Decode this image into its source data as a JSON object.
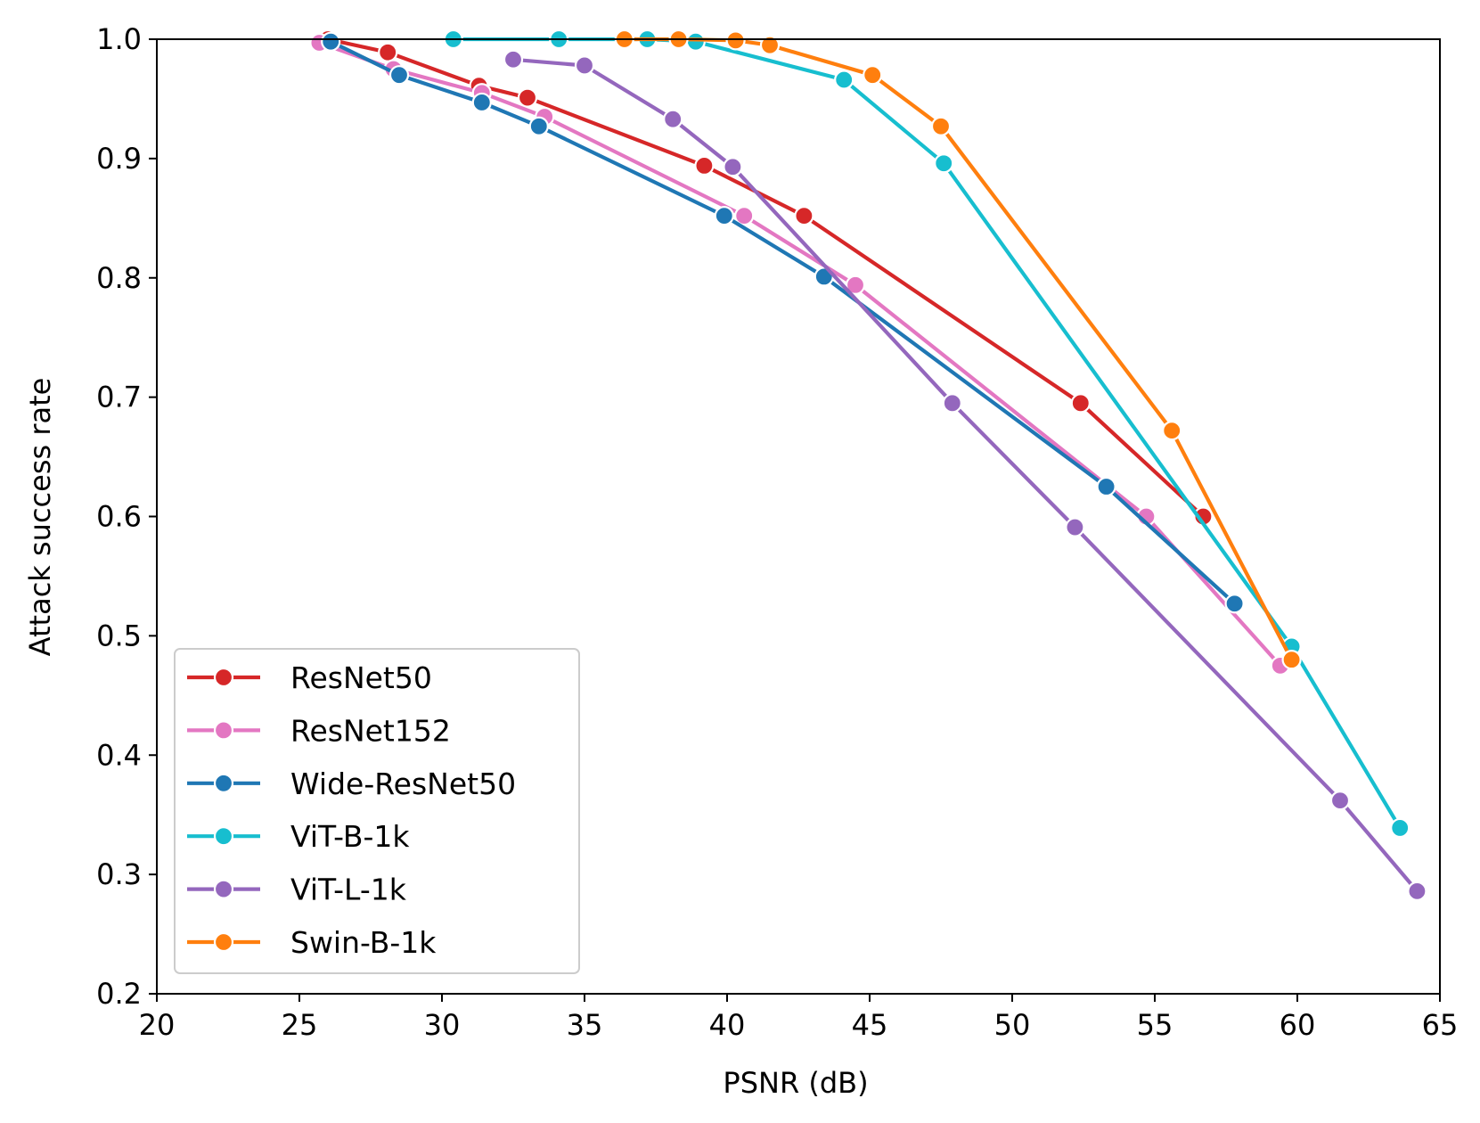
{
  "chart_data": {
    "type": "line",
    "title": "",
    "xlabel": "PSNR (dB)",
    "ylabel": "Attack success rate",
    "xlim": [
      20,
      65
    ],
    "ylim": [
      0.2,
      1.0
    ],
    "xticks": [
      20,
      25,
      30,
      35,
      40,
      45,
      50,
      55,
      60,
      65
    ],
    "yticks": [
      0.2,
      0.3,
      0.4,
      0.5,
      0.6,
      0.7,
      0.8,
      0.9,
      1.0
    ],
    "xtick_labels": [
      "20",
      "25",
      "30",
      "35",
      "40",
      "45",
      "50",
      "55",
      "60",
      "65"
    ],
    "ytick_labels": [
      "0.2",
      "0.3",
      "0.4",
      "0.5",
      "0.6",
      "0.7",
      "0.8",
      "0.9",
      "1.0"
    ],
    "grid": false,
    "legend_position": "lower-left",
    "series": [
      {
        "name": "ResNet50",
        "color": "#d62728",
        "x": [
          26.0,
          28.1,
          31.3,
          33.0,
          39.2,
          42.7,
          52.4,
          56.7
        ],
        "y": [
          1.0,
          0.989,
          0.961,
          0.951,
          0.894,
          0.852,
          0.695,
          0.6
        ]
      },
      {
        "name": "ResNet152",
        "color": "#e377c2",
        "x": [
          25.7,
          28.3,
          31.4,
          33.6,
          40.6,
          44.5,
          54.7,
          59.4
        ],
        "y": [
          0.997,
          0.975,
          0.955,
          0.935,
          0.852,
          0.794,
          0.6,
          0.475
        ]
      },
      {
        "name": "Wide-ResNet50",
        "color": "#1f77b4",
        "x": [
          26.1,
          28.5,
          31.4,
          33.4,
          39.9,
          43.4,
          53.3,
          57.8
        ],
        "y": [
          0.998,
          0.97,
          0.947,
          0.927,
          0.852,
          0.801,
          0.625,
          0.527
        ]
      },
      {
        "name": "ViT-B-1k",
        "color": "#17becf",
        "x": [
          30.4,
          34.1,
          37.2,
          38.9,
          44.1,
          47.6,
          59.8,
          63.6
        ],
        "y": [
          1.0,
          1.0,
          1.0,
          0.998,
          0.966,
          0.896,
          0.491,
          0.339
        ]
      },
      {
        "name": "ViT-L-1k",
        "color": "#9467bd",
        "x": [
          32.5,
          35.0,
          38.1,
          40.2,
          47.9,
          52.2,
          61.5,
          64.2
        ],
        "y": [
          0.983,
          0.978,
          0.933,
          0.893,
          0.695,
          0.591,
          0.362,
          0.286
        ]
      },
      {
        "name": "Swin-B-1k",
        "color": "#ff7f0e",
        "x": [
          36.4,
          38.3,
          40.3,
          41.5,
          45.1,
          47.5,
          55.6,
          59.8
        ],
        "y": [
          1.0,
          1.0,
          0.999,
          0.995,
          0.97,
          0.927,
          0.672,
          0.48
        ]
      }
    ]
  }
}
